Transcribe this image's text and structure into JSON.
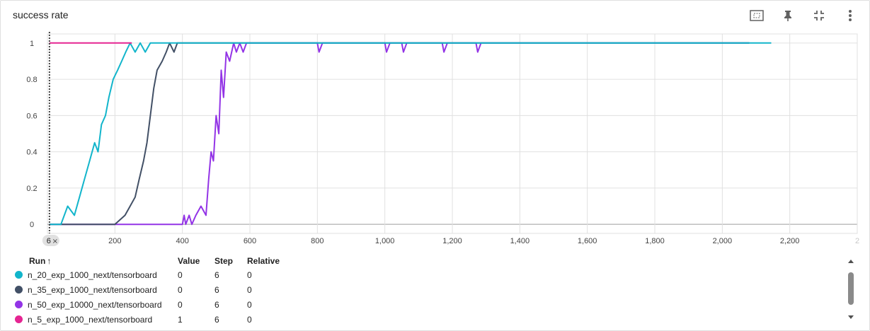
{
  "card": {
    "title": "success rate",
    "toolbar": [
      {
        "name": "fit-domain-icon"
      },
      {
        "name": "pin-icon"
      },
      {
        "name": "collapse-icon"
      },
      {
        "name": "more-vert-icon"
      }
    ]
  },
  "chart_data": {
    "type": "line",
    "title": "success rate",
    "xlim": [
      0,
      2400
    ],
    "ylim": [
      -0.05,
      1.05
    ],
    "x_ticks": [
      "0",
      "200",
      "400",
      "600",
      "800",
      "1,000",
      "1,200",
      "1,400",
      "1,600",
      "1,800",
      "2,000",
      "2,200",
      "2"
    ],
    "y_ticks": [
      "0",
      "0.2",
      "0.4",
      "0.6",
      "0.8",
      "1"
    ],
    "grid": true,
    "cursor_step": 6,
    "cursor_label": "6",
    "series": [
      {
        "name": "n_50_exp_10000_next/tensorboard",
        "color": "#9334e6",
        "points": [
          [
            6,
            0
          ],
          [
            400,
            0
          ],
          [
            405,
            0.05
          ],
          [
            410,
            0
          ],
          [
            420,
            0.05
          ],
          [
            428,
            0
          ],
          [
            440,
            0.05
          ],
          [
            455,
            0.1
          ],
          [
            470,
            0.05
          ],
          [
            478,
            0.25
          ],
          [
            485,
            0.4
          ],
          [
            492,
            0.35
          ],
          [
            500,
            0.6
          ],
          [
            508,
            0.5
          ],
          [
            515,
            0.85
          ],
          [
            522,
            0.7
          ],
          [
            530,
            0.95
          ],
          [
            540,
            0.9
          ],
          [
            552,
            1
          ],
          [
            560,
            0.95
          ],
          [
            570,
            1
          ],
          [
            580,
            0.95
          ],
          [
            590,
            1
          ],
          [
            800,
            1
          ],
          [
            805,
            0.95
          ],
          [
            815,
            1
          ],
          [
            1000,
            1
          ],
          [
            1005,
            0.95
          ],
          [
            1015,
            1
          ],
          [
            1050,
            1
          ],
          [
            1055,
            0.95
          ],
          [
            1065,
            1
          ],
          [
            1170,
            1
          ],
          [
            1175,
            0.95
          ],
          [
            1185,
            1
          ],
          [
            1270,
            1
          ],
          [
            1275,
            0.95
          ],
          [
            1285,
            1
          ],
          [
            2080,
            1
          ]
        ]
      },
      {
        "name": "n_35_exp_1000_next/tensorboard",
        "color": "#425066",
        "points": [
          [
            6,
            0
          ],
          [
            200,
            0
          ],
          [
            230,
            0.05
          ],
          [
            245,
            0.1
          ],
          [
            260,
            0.15
          ],
          [
            272,
            0.25
          ],
          [
            285,
            0.35
          ],
          [
            295,
            0.45
          ],
          [
            305,
            0.6
          ],
          [
            315,
            0.75
          ],
          [
            325,
            0.85
          ],
          [
            340,
            0.9
          ],
          [
            352,
            0.95
          ],
          [
            362,
            1
          ],
          [
            375,
            0.95
          ],
          [
            385,
            1
          ],
          [
            2080,
            1
          ]
        ]
      },
      {
        "name": "n_20_exp_1000_next/tensorboard",
        "color": "#12b5cb",
        "points": [
          [
            6,
            0
          ],
          [
            40,
            0
          ],
          [
            60,
            0.1
          ],
          [
            80,
            0.05
          ],
          [
            95,
            0.15
          ],
          [
            110,
            0.25
          ],
          [
            125,
            0.35
          ],
          [
            140,
            0.45
          ],
          [
            150,
            0.4
          ],
          [
            160,
            0.55
          ],
          [
            172,
            0.6
          ],
          [
            182,
            0.7
          ],
          [
            195,
            0.8
          ],
          [
            208,
            0.85
          ],
          [
            220,
            0.9
          ],
          [
            232,
            0.95
          ],
          [
            245,
            1
          ],
          [
            260,
            0.95
          ],
          [
            275,
            1
          ],
          [
            290,
            0.95
          ],
          [
            305,
            1
          ],
          [
            2145,
            1
          ]
        ]
      },
      {
        "name": "n_5_exp_1000_next/tensorboard",
        "color": "#e52592",
        "points": [
          [
            6,
            1
          ],
          [
            250,
            1
          ]
        ]
      }
    ]
  },
  "runs_table": {
    "headers": {
      "run": "Run",
      "sort_icon": "↑",
      "value": "Value",
      "step": "Step",
      "relative": "Relative"
    },
    "rows": [
      {
        "run": "n_20_exp_1000_next/tensorboard",
        "value": "0",
        "step": "6",
        "relative": "0",
        "color": "#12b5cb"
      },
      {
        "run": "n_35_exp_1000_next/tensorboard",
        "value": "0",
        "step": "6",
        "relative": "0",
        "color": "#425066"
      },
      {
        "run": "n_50_exp_10000_next/tensorboard",
        "value": "0",
        "step": "6",
        "relative": "0",
        "color": "#9334e6"
      },
      {
        "run": "n_5_exp_1000_next/tensorboard",
        "value": "1",
        "step": "6",
        "relative": "0",
        "color": "#e52592"
      }
    ]
  }
}
